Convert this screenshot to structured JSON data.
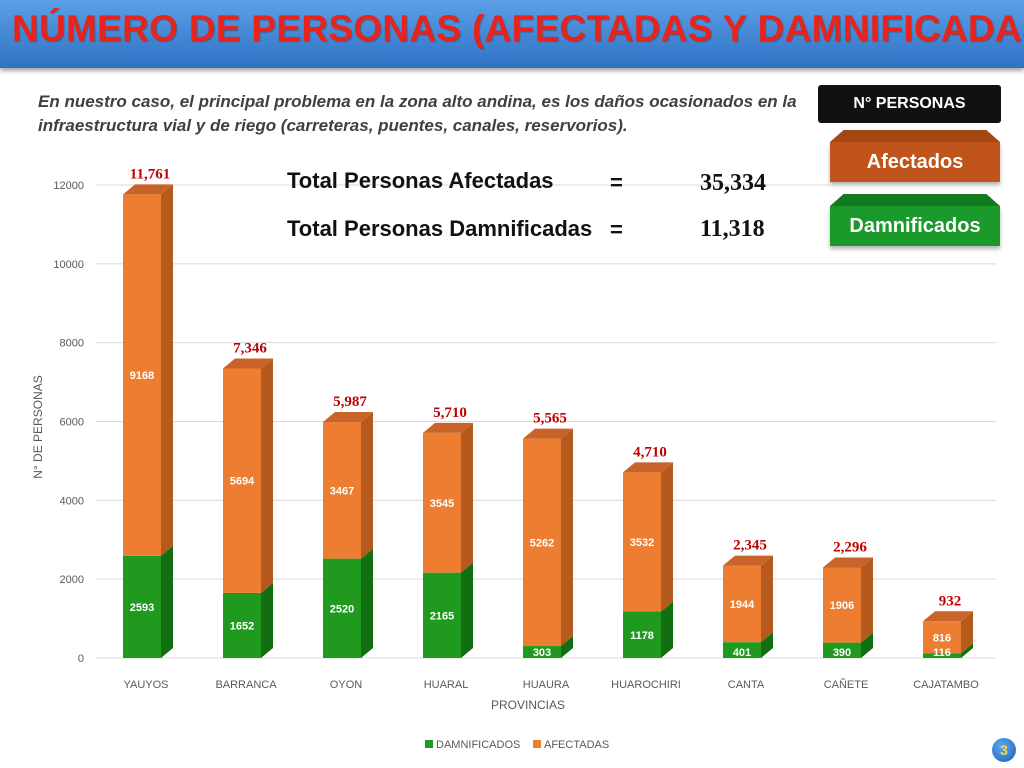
{
  "slide": {
    "title": "NÚMERO DE PERSONAS (AFECTADAS Y DAMNIFICADAS)",
    "subtitle": "En nuestro caso, el principal problema en la zona alto andina, es los daños ocasionados en la infraestructura vial y de riego (carreteras, puentes, canales, reservorios).",
    "personas_label": "N° PERSONAS",
    "btn_afectados": "Afectados",
    "btn_damnificados": "Damnificados",
    "total_afectadas_label": "Total Personas Afectadas",
    "total_afectadas_eq": "=",
    "total_afectadas_value": "35,334",
    "total_damnificadas_label": "Total Personas Damnificadas",
    "total_damnificadas_eq": "=",
    "total_damnificadas_value": "11,318",
    "page_number": "3"
  },
  "colors": {
    "afectados": "#ed7d31",
    "afectados_dark": "#b55a1c",
    "damnificados": "#1f9a1f",
    "damnificados_dark": "#116e11",
    "total_label": "#c00000",
    "grid": "#d9d9d9"
  },
  "chart_data": {
    "type": "bar",
    "stacked": true,
    "categories": [
      "YAUYOS",
      "BARRANCA",
      "OYON",
      "HUARAL",
      "HUAURA",
      "HUAROCHIRI",
      "CANTA",
      "CAÑETE",
      "CAJATAMBO"
    ],
    "series": [
      {
        "name": "DAMNIFICADOS",
        "values": [
          2593,
          1652,
          2520,
          2165,
          303,
          1178,
          401,
          390,
          116
        ]
      },
      {
        "name": "AFECTADAS",
        "values": [
          9168,
          5694,
          3467,
          3545,
          5262,
          3532,
          1944,
          1906,
          816
        ]
      }
    ],
    "totals": [
      "11,761",
      "7,346",
      "5,987",
      "5,710",
      "5,565",
      "4,710",
      "2,345",
      "2,296",
      "932"
    ],
    "xlabel": "PROVINCIAS",
    "ylabel": "N° DE PERSONAS",
    "ylim": [
      0,
      12000
    ],
    "yticks": [
      0,
      2000,
      4000,
      6000,
      8000,
      10000,
      12000
    ],
    "grid": true,
    "legend_position": "bottom"
  }
}
